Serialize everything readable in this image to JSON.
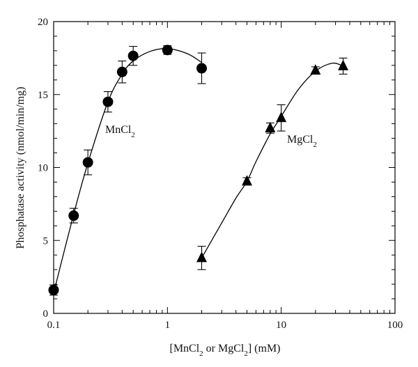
{
  "chart_data": {
    "type": "scatter",
    "x_scale": "log",
    "xlim": [
      0.1,
      100
    ],
    "ylim": [
      0,
      20
    ],
    "xlabel_parts": [
      "[MnCl",
      "2",
      " or MgCl",
      "2",
      "] (mM)"
    ],
    "ylabel": "Phosphatase activity (nmol/min/mg)",
    "x_tick_labels": [
      {
        "value": 0.1,
        "label": "0.1"
      },
      {
        "value": 1,
        "label": "1"
      },
      {
        "value": 10,
        "label": "10"
      },
      {
        "value": 100,
        "label": "100"
      }
    ],
    "y_tick_labels": [
      {
        "value": 0,
        "label": "0"
      },
      {
        "value": 5,
        "label": "5"
      },
      {
        "value": 10,
        "label": "10"
      },
      {
        "value": 15,
        "label": "15"
      },
      {
        "value": 20,
        "label": "20"
      }
    ],
    "grid": false,
    "series": [
      {
        "label_parts": [
          "MnCl",
          "2"
        ],
        "marker": "circle",
        "x": [
          0.1,
          0.15,
          0.2,
          0.3,
          0.4,
          0.5,
          1.0,
          2.0
        ],
        "y": [
          1.6,
          6.7,
          10.35,
          14.5,
          16.55,
          17.65,
          18.05,
          16.8
        ],
        "err": [
          0.35,
          0.5,
          0.85,
          0.7,
          0.75,
          0.65,
          0.3,
          1.05
        ],
        "curve_x": [
          0.1,
          0.15,
          0.2,
          0.3,
          0.4,
          0.5,
          0.7,
          1.0,
          1.5,
          2.0
        ],
        "curve_y": [
          1.4,
          6.8,
          10.3,
          14.5,
          16.4,
          17.3,
          17.95,
          18.15,
          17.8,
          17.2
        ]
      },
      {
        "label_parts": [
          "MgCl",
          "2"
        ],
        "marker": "triangle",
        "x": [
          2.0,
          5.0,
          8.0,
          10.0,
          20.0,
          35.0
        ],
        "y": [
          3.8,
          9.05,
          12.7,
          13.4,
          16.65,
          16.95
        ],
        "err": [
          0.8,
          0.25,
          0.35,
          0.9,
          0.25,
          0.55
        ],
        "curve_x": [
          2.0,
          3.0,
          4.0,
          5.0,
          6.0,
          8.0,
          10.0,
          14.0,
          20.0,
          28.0,
          35.0
        ],
        "curve_y": [
          3.8,
          6.2,
          7.9,
          9.05,
          10.4,
          12.3,
          13.5,
          15.3,
          16.6,
          17.15,
          16.95
        ]
      }
    ]
  }
}
